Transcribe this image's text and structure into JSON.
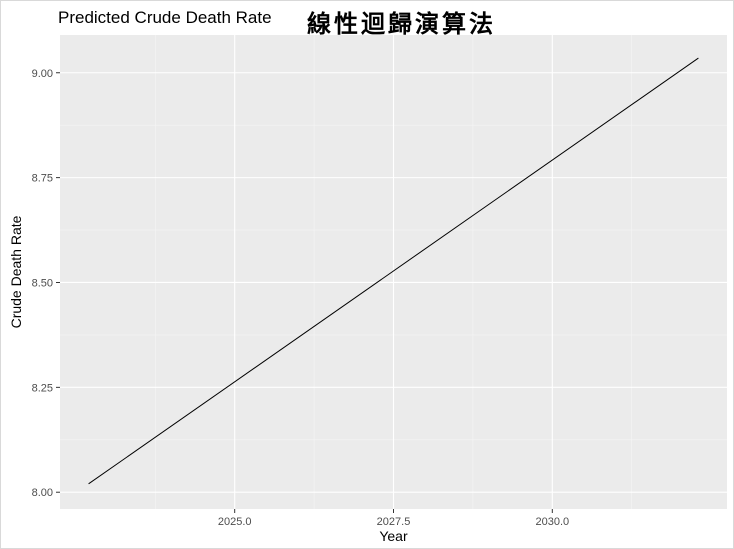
{
  "chart_data": {
    "type": "line",
    "title": "Predicted Crude Death Rate",
    "subtitle": "線性迴歸演算法",
    "xlabel": "Year",
    "ylabel": "Crude Death Rate",
    "xlim": [
      2022.25,
      2032.75
    ],
    "ylim": [
      7.96,
      9.09
    ],
    "x_ticks": [
      2025.0,
      2027.5,
      2030.0
    ],
    "x_tick_labels": [
      "2025.0",
      "2027.5",
      "2030.0"
    ],
    "y_ticks": [
      8.0,
      8.25,
      8.5,
      8.75,
      9.0
    ],
    "y_tick_labels": [
      "8.00",
      "8.25",
      "8.50",
      "8.75",
      "9.00"
    ],
    "grid": true,
    "legend": "none",
    "colors": {
      "panel_background": "#EBEBEB",
      "grid_major": "#FFFFFF",
      "grid_minor": "#F5F5F5",
      "line": "#000000"
    },
    "series": [
      {
        "x": [
          2022.7,
          2032.3
        ],
        "values": [
          8.02,
          9.035
        ]
      }
    ]
  }
}
